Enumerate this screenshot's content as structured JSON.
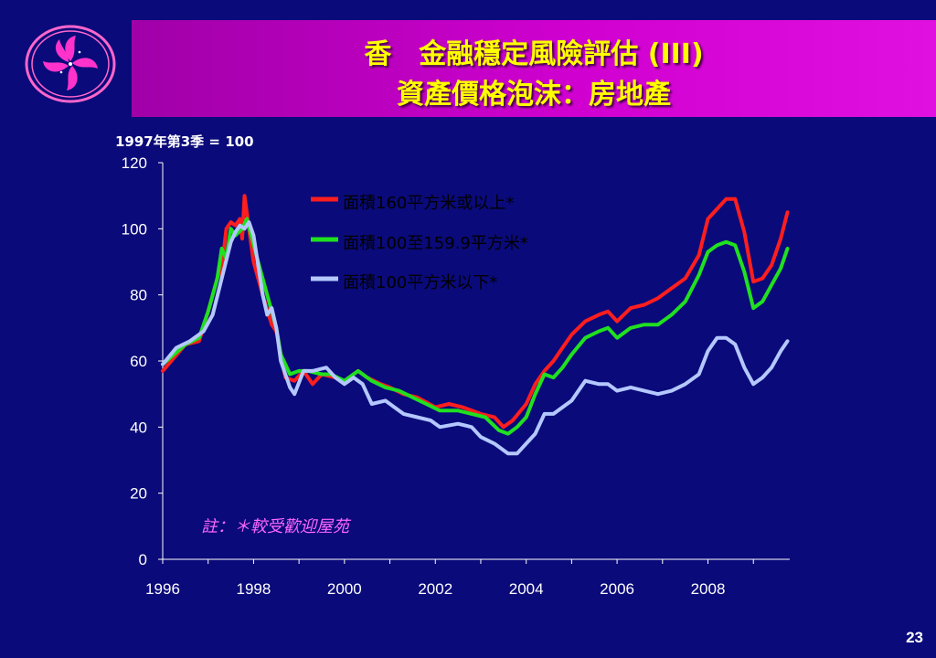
{
  "header": {
    "title_line1": "香　金融穩定風險評估 (III)",
    "title_line2": "資產價格泡沫：房地產",
    "logo_icon": "bauhinia-flower-icon"
  },
  "page_number": "23",
  "colors": {
    "background": "#0a0a7a",
    "banner": "#c800c8",
    "title": "#ffff00",
    "large": "#ff1e1e",
    "medium": "#20e020",
    "small": "#b4c8ff",
    "note": "#ff66ff"
  },
  "chart_data": {
    "type": "line",
    "title": "",
    "ylabel": "1997年第3季 = 100",
    "xlabel": "",
    "ylim": [
      0,
      120
    ],
    "y_ticks": [
      0,
      20,
      40,
      60,
      80,
      100,
      120
    ],
    "xlim": [
      1996,
      2009.8
    ],
    "x_tick_labels": [
      "1996",
      "1998",
      "2000",
      "2002",
      "2004",
      "2006",
      "2008"
    ],
    "legend_position": "top-center",
    "note": "註：＊較受歡迎屋苑",
    "series": [
      {
        "name": "面積160平方米或以上*",
        "color": "#ff1e1e",
        "points": [
          [
            1996.0,
            57
          ],
          [
            1996.5,
            65
          ],
          [
            1996.8,
            66
          ],
          [
            1997.0,
            75
          ],
          [
            1997.2,
            85
          ],
          [
            1997.3,
            88
          ],
          [
            1997.4,
            100
          ],
          [
            1997.5,
            102
          ],
          [
            1997.6,
            101
          ],
          [
            1997.7,
            103
          ],
          [
            1997.75,
            97
          ],
          [
            1997.8,
            110
          ],
          [
            1997.9,
            100
          ],
          [
            1998.0,
            90
          ],
          [
            1998.2,
            80
          ],
          [
            1998.4,
            71
          ],
          [
            1998.5,
            69
          ],
          [
            1998.7,
            55
          ],
          [
            1998.9,
            54
          ],
          [
            1999.1,
            57
          ],
          [
            1999.3,
            53
          ],
          [
            1999.5,
            56
          ],
          [
            1999.8,
            55
          ],
          [
            2000.0,
            54
          ],
          [
            2000.3,
            57
          ],
          [
            2000.5,
            55
          ],
          [
            2000.8,
            53
          ],
          [
            2001.0,
            52
          ],
          [
            2001.3,
            50
          ],
          [
            2001.6,
            49
          ],
          [
            2002.0,
            46
          ],
          [
            2002.3,
            47
          ],
          [
            2002.6,
            46
          ],
          [
            2003.0,
            44
          ],
          [
            2003.3,
            43
          ],
          [
            2003.5,
            40
          ],
          [
            2003.7,
            42
          ],
          [
            2004.0,
            47
          ],
          [
            2004.2,
            53
          ],
          [
            2004.4,
            57
          ],
          [
            2004.6,
            60
          ],
          [
            2004.8,
            64
          ],
          [
            2005.0,
            68
          ],
          [
            2005.3,
            72
          ],
          [
            2005.6,
            74
          ],
          [
            2005.8,
            75
          ],
          [
            2006.0,
            72
          ],
          [
            2006.3,
            76
          ],
          [
            2006.6,
            77
          ],
          [
            2006.9,
            79
          ],
          [
            2007.2,
            82
          ],
          [
            2007.5,
            85
          ],
          [
            2007.8,
            92
          ],
          [
            2008.0,
            103
          ],
          [
            2008.2,
            106
          ],
          [
            2008.4,
            109
          ],
          [
            2008.6,
            109
          ],
          [
            2008.8,
            99
          ],
          [
            2009.0,
            84
          ],
          [
            2009.2,
            85
          ],
          [
            2009.4,
            89
          ],
          [
            2009.6,
            97
          ],
          [
            2009.75,
            105
          ]
        ]
      },
      {
        "name": "面積100至159.9平方米*",
        "color": "#20e020",
        "points": [
          [
            1996.0,
            59
          ],
          [
            1996.5,
            65
          ],
          [
            1996.8,
            67
          ],
          [
            1997.0,
            75
          ],
          [
            1997.2,
            85
          ],
          [
            1997.3,
            94
          ],
          [
            1997.4,
            91
          ],
          [
            1997.5,
            100
          ],
          [
            1997.6,
            98
          ],
          [
            1997.75,
            100
          ],
          [
            1997.85,
            103
          ],
          [
            1997.95,
            98
          ],
          [
            1998.1,
            90
          ],
          [
            1998.3,
            80
          ],
          [
            1998.5,
            70
          ],
          [
            1998.6,
            62
          ],
          [
            1998.8,
            56
          ],
          [
            1999.0,
            57
          ],
          [
            1999.2,
            57
          ],
          [
            1999.5,
            56
          ],
          [
            1999.7,
            56
          ],
          [
            2000.0,
            54
          ],
          [
            2000.3,
            57
          ],
          [
            2000.6,
            54
          ],
          [
            2000.9,
            52
          ],
          [
            2001.2,
            51
          ],
          [
            2001.5,
            49
          ],
          [
            2001.8,
            47
          ],
          [
            2002.1,
            45
          ],
          [
            2002.5,
            45
          ],
          [
            2002.8,
            44
          ],
          [
            2003.1,
            43
          ],
          [
            2003.4,
            39
          ],
          [
            2003.6,
            38
          ],
          [
            2003.8,
            40
          ],
          [
            2004.0,
            43
          ],
          [
            2004.2,
            50
          ],
          [
            2004.4,
            56
          ],
          [
            2004.6,
            55
          ],
          [
            2004.8,
            58
          ],
          [
            2005.0,
            62
          ],
          [
            2005.3,
            67
          ],
          [
            2005.6,
            69
          ],
          [
            2005.8,
            70
          ],
          [
            2006.0,
            67
          ],
          [
            2006.3,
            70
          ],
          [
            2006.6,
            71
          ],
          [
            2006.9,
            71
          ],
          [
            2007.2,
            74
          ],
          [
            2007.5,
            78
          ],
          [
            2007.8,
            86
          ],
          [
            2008.0,
            93
          ],
          [
            2008.2,
            95
          ],
          [
            2008.4,
            96
          ],
          [
            2008.6,
            95
          ],
          [
            2008.8,
            87
          ],
          [
            2009.0,
            76
          ],
          [
            2009.2,
            78
          ],
          [
            2009.4,
            83
          ],
          [
            2009.6,
            88
          ],
          [
            2009.75,
            94
          ]
        ]
      },
      {
        "name": "面積100平方米以下*",
        "color": "#b4c8ff",
        "points": [
          [
            1996.0,
            59
          ],
          [
            1996.3,
            64
          ],
          [
            1996.6,
            66
          ],
          [
            1996.9,
            69
          ],
          [
            1997.1,
            74
          ],
          [
            1997.3,
            85
          ],
          [
            1997.5,
            96
          ],
          [
            1997.6,
            99
          ],
          [
            1997.7,
            101
          ],
          [
            1997.8,
            100
          ],
          [
            1997.9,
            102
          ],
          [
            1998.0,
            98
          ],
          [
            1998.2,
            80
          ],
          [
            1998.3,
            74
          ],
          [
            1998.4,
            76
          ],
          [
            1998.5,
            70
          ],
          [
            1998.6,
            60
          ],
          [
            1998.8,
            52
          ],
          [
            1998.9,
            50
          ],
          [
            1999.1,
            57
          ],
          [
            1999.3,
            57
          ],
          [
            1999.6,
            58
          ],
          [
            1999.8,
            55
          ],
          [
            2000.0,
            53
          ],
          [
            2000.2,
            55
          ],
          [
            2000.4,
            53
          ],
          [
            2000.6,
            47
          ],
          [
            2000.9,
            48
          ],
          [
            2001.1,
            46
          ],
          [
            2001.3,
            44
          ],
          [
            2001.6,
            43
          ],
          [
            2001.9,
            42
          ],
          [
            2002.1,
            40
          ],
          [
            2002.5,
            41
          ],
          [
            2002.8,
            40
          ],
          [
            2003.0,
            37
          ],
          [
            2003.3,
            35
          ],
          [
            2003.6,
            32
          ],
          [
            2003.8,
            32
          ],
          [
            2004.0,
            35
          ],
          [
            2004.2,
            38
          ],
          [
            2004.4,
            44
          ],
          [
            2004.6,
            44
          ],
          [
            2004.8,
            46
          ],
          [
            2005.0,
            48
          ],
          [
            2005.3,
            54
          ],
          [
            2005.6,
            53
          ],
          [
            2005.8,
            53
          ],
          [
            2006.0,
            51
          ],
          [
            2006.3,
            52
          ],
          [
            2006.6,
            51
          ],
          [
            2006.9,
            50
          ],
          [
            2007.2,
            51
          ],
          [
            2007.5,
            53
          ],
          [
            2007.8,
            56
          ],
          [
            2008.0,
            63
          ],
          [
            2008.2,
            67
          ],
          [
            2008.4,
            67
          ],
          [
            2008.6,
            65
          ],
          [
            2008.8,
            58
          ],
          [
            2009.0,
            53
          ],
          [
            2009.2,
            55
          ],
          [
            2009.4,
            58
          ],
          [
            2009.6,
            63
          ],
          [
            2009.75,
            66
          ]
        ]
      }
    ]
  }
}
